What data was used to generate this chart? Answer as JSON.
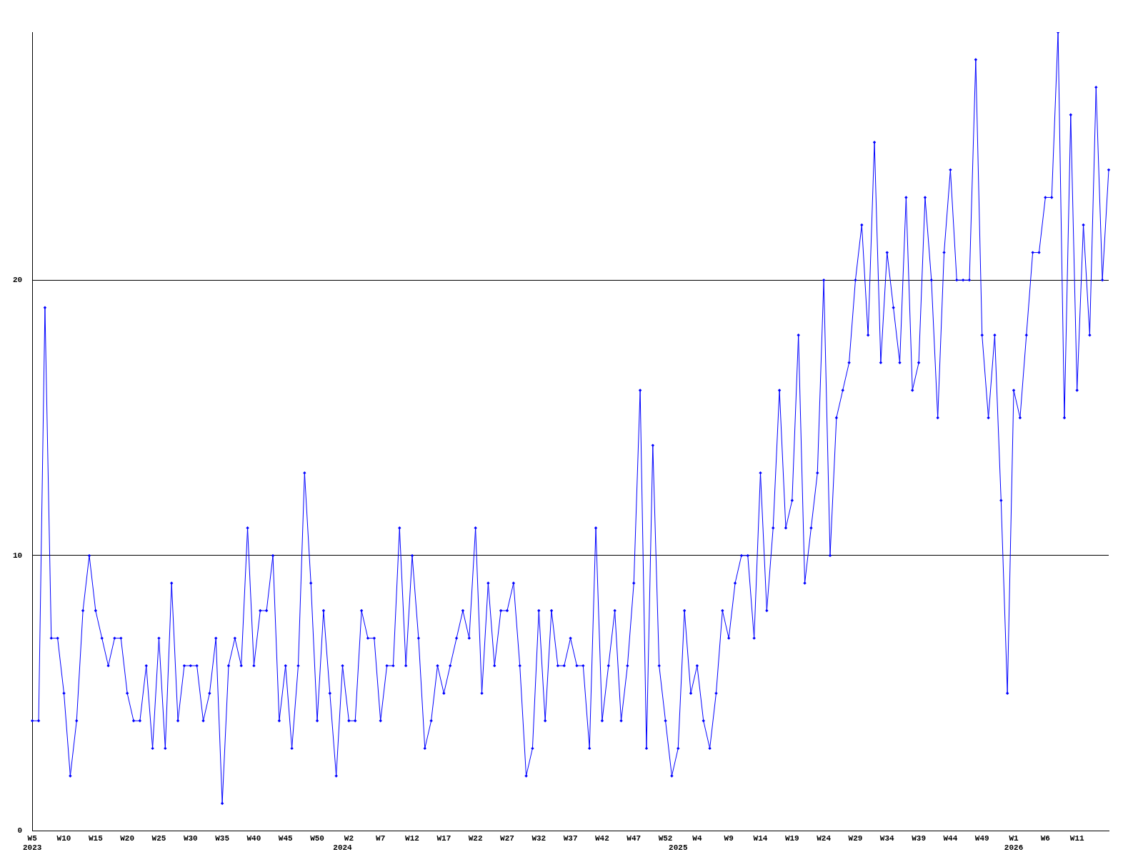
{
  "chart_data": {
    "type": "line",
    "categories": [
      "W5\n2023",
      null,
      null,
      null,
      null,
      "W10",
      null,
      null,
      null,
      null,
      "W15",
      null,
      null,
      null,
      null,
      "W20",
      null,
      null,
      null,
      null,
      "W25",
      null,
      null,
      null,
      null,
      "W30",
      null,
      null,
      null,
      null,
      "W35",
      null,
      null,
      null,
      null,
      "W40",
      null,
      null,
      null,
      null,
      "W45",
      null,
      null,
      null,
      null,
      "W50",
      null,
      null,
      null,
      "\n2024",
      "W2",
      null,
      null,
      null,
      null,
      "W7",
      null,
      null,
      null,
      null,
      "W12",
      null,
      null,
      null,
      null,
      "W17",
      null,
      null,
      null,
      null,
      "W22",
      null,
      null,
      null,
      null,
      "W27",
      null,
      null,
      null,
      null,
      "W32",
      null,
      null,
      null,
      null,
      "W37",
      null,
      null,
      null,
      null,
      "W42",
      null,
      null,
      null,
      null,
      "W47",
      null,
      null,
      null,
      null,
      "W52",
      null,
      "\n2025",
      null,
      null,
      "W4",
      null,
      null,
      null,
      null,
      "W9",
      null,
      null,
      null,
      null,
      "W14",
      null,
      null,
      null,
      null,
      "W19",
      null,
      null,
      null,
      null,
      "W24",
      null,
      null,
      null,
      null,
      "W29",
      null,
      null,
      null,
      null,
      "W34",
      null,
      null,
      null,
      null,
      "W39",
      null,
      null,
      null,
      null,
      "W44",
      null,
      null,
      null,
      null,
      "W49",
      null,
      null,
      null,
      null,
      "W1\n2026",
      null,
      null,
      null,
      null,
      "W6",
      null,
      null,
      null,
      null,
      "W11",
      null,
      null,
      null,
      null,
      null
    ],
    "series": [
      {
        "color": "#0000ff",
        "values": [
          4,
          4,
          19,
          7,
          7,
          5,
          2,
          4,
          8,
          10,
          8,
          7,
          6,
          7,
          7,
          5,
          4,
          4,
          6,
          3,
          7,
          3,
          9,
          4,
          6,
          6,
          6,
          4,
          5,
          7,
          1,
          6,
          7,
          6,
          11,
          6,
          8,
          8,
          10,
          4,
          6,
          3,
          6,
          13,
          9,
          4,
          8,
          5,
          2,
          6,
          4,
          4,
          8,
          7,
          7,
          4,
          6,
          6,
          11,
          6,
          10,
          7,
          3,
          4,
          6,
          5,
          6,
          7,
          8,
          7,
          11,
          5,
          9,
          6,
          8,
          8,
          9,
          6,
          2,
          3,
          8,
          4,
          8,
          6,
          6,
          7,
          6,
          6,
          3,
          11,
          4,
          6,
          8,
          4,
          6,
          9,
          16,
          3,
          14,
          6,
          4,
          2,
          3,
          8,
          5,
          6,
          4,
          3,
          5,
          8,
          7,
          9,
          10,
          10,
          7,
          13,
          8,
          11,
          16,
          11,
          12,
          18,
          9,
          11,
          13,
          20,
          10,
          15,
          16,
          17,
          20,
          22,
          18,
          25,
          17,
          21,
          19,
          17,
          23,
          16,
          17,
          23,
          20,
          15,
          21,
          24,
          20,
          20,
          20,
          28,
          18,
          15,
          18,
          12,
          5,
          16,
          15,
          18,
          21,
          21,
          23,
          23,
          29,
          15,
          26,
          16,
          22,
          18,
          27,
          20,
          24
        ]
      }
    ],
    "ylim": [
      0,
      29
    ],
    "yticks": [
      0,
      10,
      20
    ],
    "grid": "y",
    "marker": "diamond",
    "line_style": "solid",
    "legend": false
  }
}
